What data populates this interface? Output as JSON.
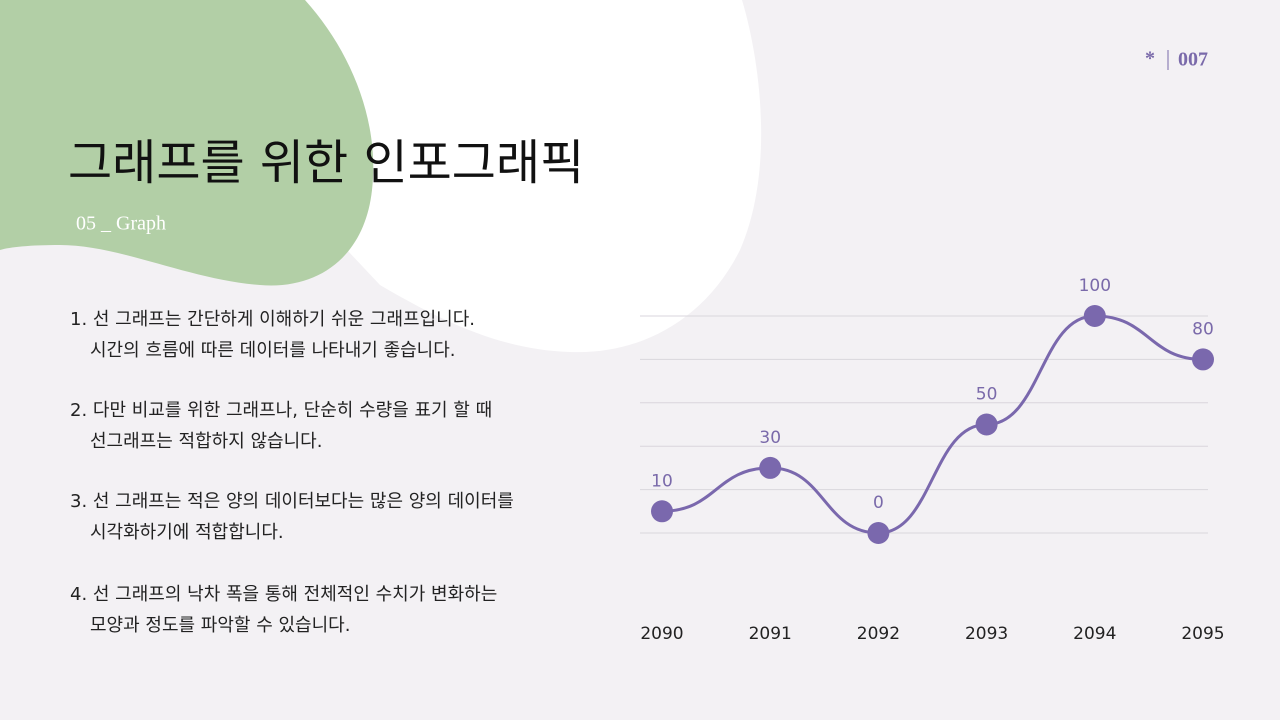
{
  "page_number": {
    "symbol": "*",
    "number": "007"
  },
  "title": "그래프를 위한 인포그래픽",
  "subtitle": "05 _ Graph",
  "items": [
    [
      "1. 선 그래프는 간단하게 이해하기 쉬운 그래프입니다.",
      "시간의 흐름에 따른 데이터를 나타내기 좋습니다."
    ],
    [
      "2. 다만 비교를 위한 그래프나, 단순히 수량을 표기 할 때",
      "선그래프는 적합하지 않습니다."
    ],
    [
      "3. 선 그래프는 적은 양의 데이터보다는 많은 양의 데이터를",
      "시각화하기에 적합합니다."
    ],
    [
      "4. 선 그래프의 낙차 폭을 통해 전체적인 수치가 변화하는",
      "모양과 정도를 파악할 수 있습니다."
    ]
  ],
  "chart_data": {
    "type": "line",
    "categories": [
      "2090",
      "2091",
      "2092",
      "2093",
      "2094",
      "2095"
    ],
    "series": [
      {
        "color": "#7a68ad",
        "values": [
          10,
          30,
          0,
          50,
          100,
          80
        ]
      }
    ],
    "ylim": [
      0,
      100
    ],
    "gridlines": [
      0,
      20,
      40,
      60,
      80,
      100
    ]
  }
}
